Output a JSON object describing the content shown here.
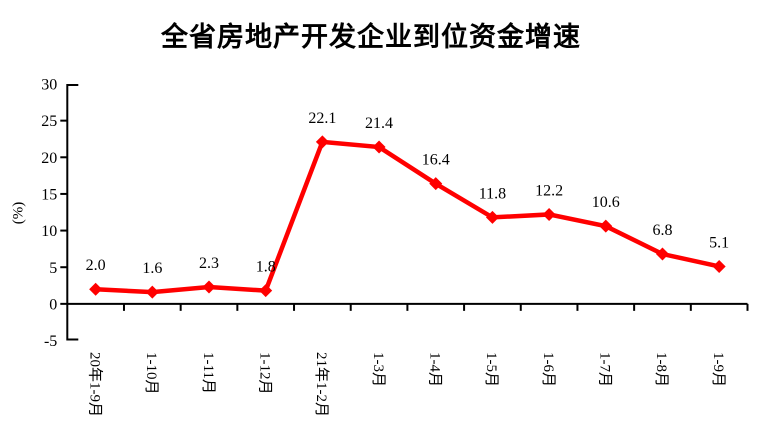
{
  "page": {
    "background": "#ffffff"
  },
  "chart_data": {
    "type": "line",
    "title": "全省房地产开发企业到位资金增速",
    "categories": [
      "20年1-9月",
      "1-10月",
      "1-11月",
      "1-12月",
      "21年1-2月",
      "1-3月",
      "1-4月",
      "1-5月",
      "1-6月",
      "1-7月",
      "1-8月",
      "1-9月"
    ],
    "values": [
      2.0,
      1.6,
      2.3,
      1.8,
      22.1,
      21.4,
      16.4,
      11.8,
      12.2,
      10.6,
      6.8,
      5.1
    ],
    "value_labels": [
      "2.0",
      "1.6",
      "2.3",
      "1.8",
      "22.1",
      "21.4",
      "16.4",
      "11.8",
      "12.2",
      "10.6",
      "6.8",
      "5.1"
    ],
    "xlabel": "",
    "ylabel": "(%)",
    "yticks": [
      30,
      25,
      20,
      15,
      10,
      5,
      0,
      -5
    ],
    "ylim": [
      -5,
      30
    ],
    "x_axis_crosses_at": 0,
    "grid": false,
    "legend": "none",
    "line_color": "#ff0000",
    "marker": "diamond",
    "marker_color": "#ff0000",
    "axis_color": "#000000",
    "text_color": "#000000"
  }
}
